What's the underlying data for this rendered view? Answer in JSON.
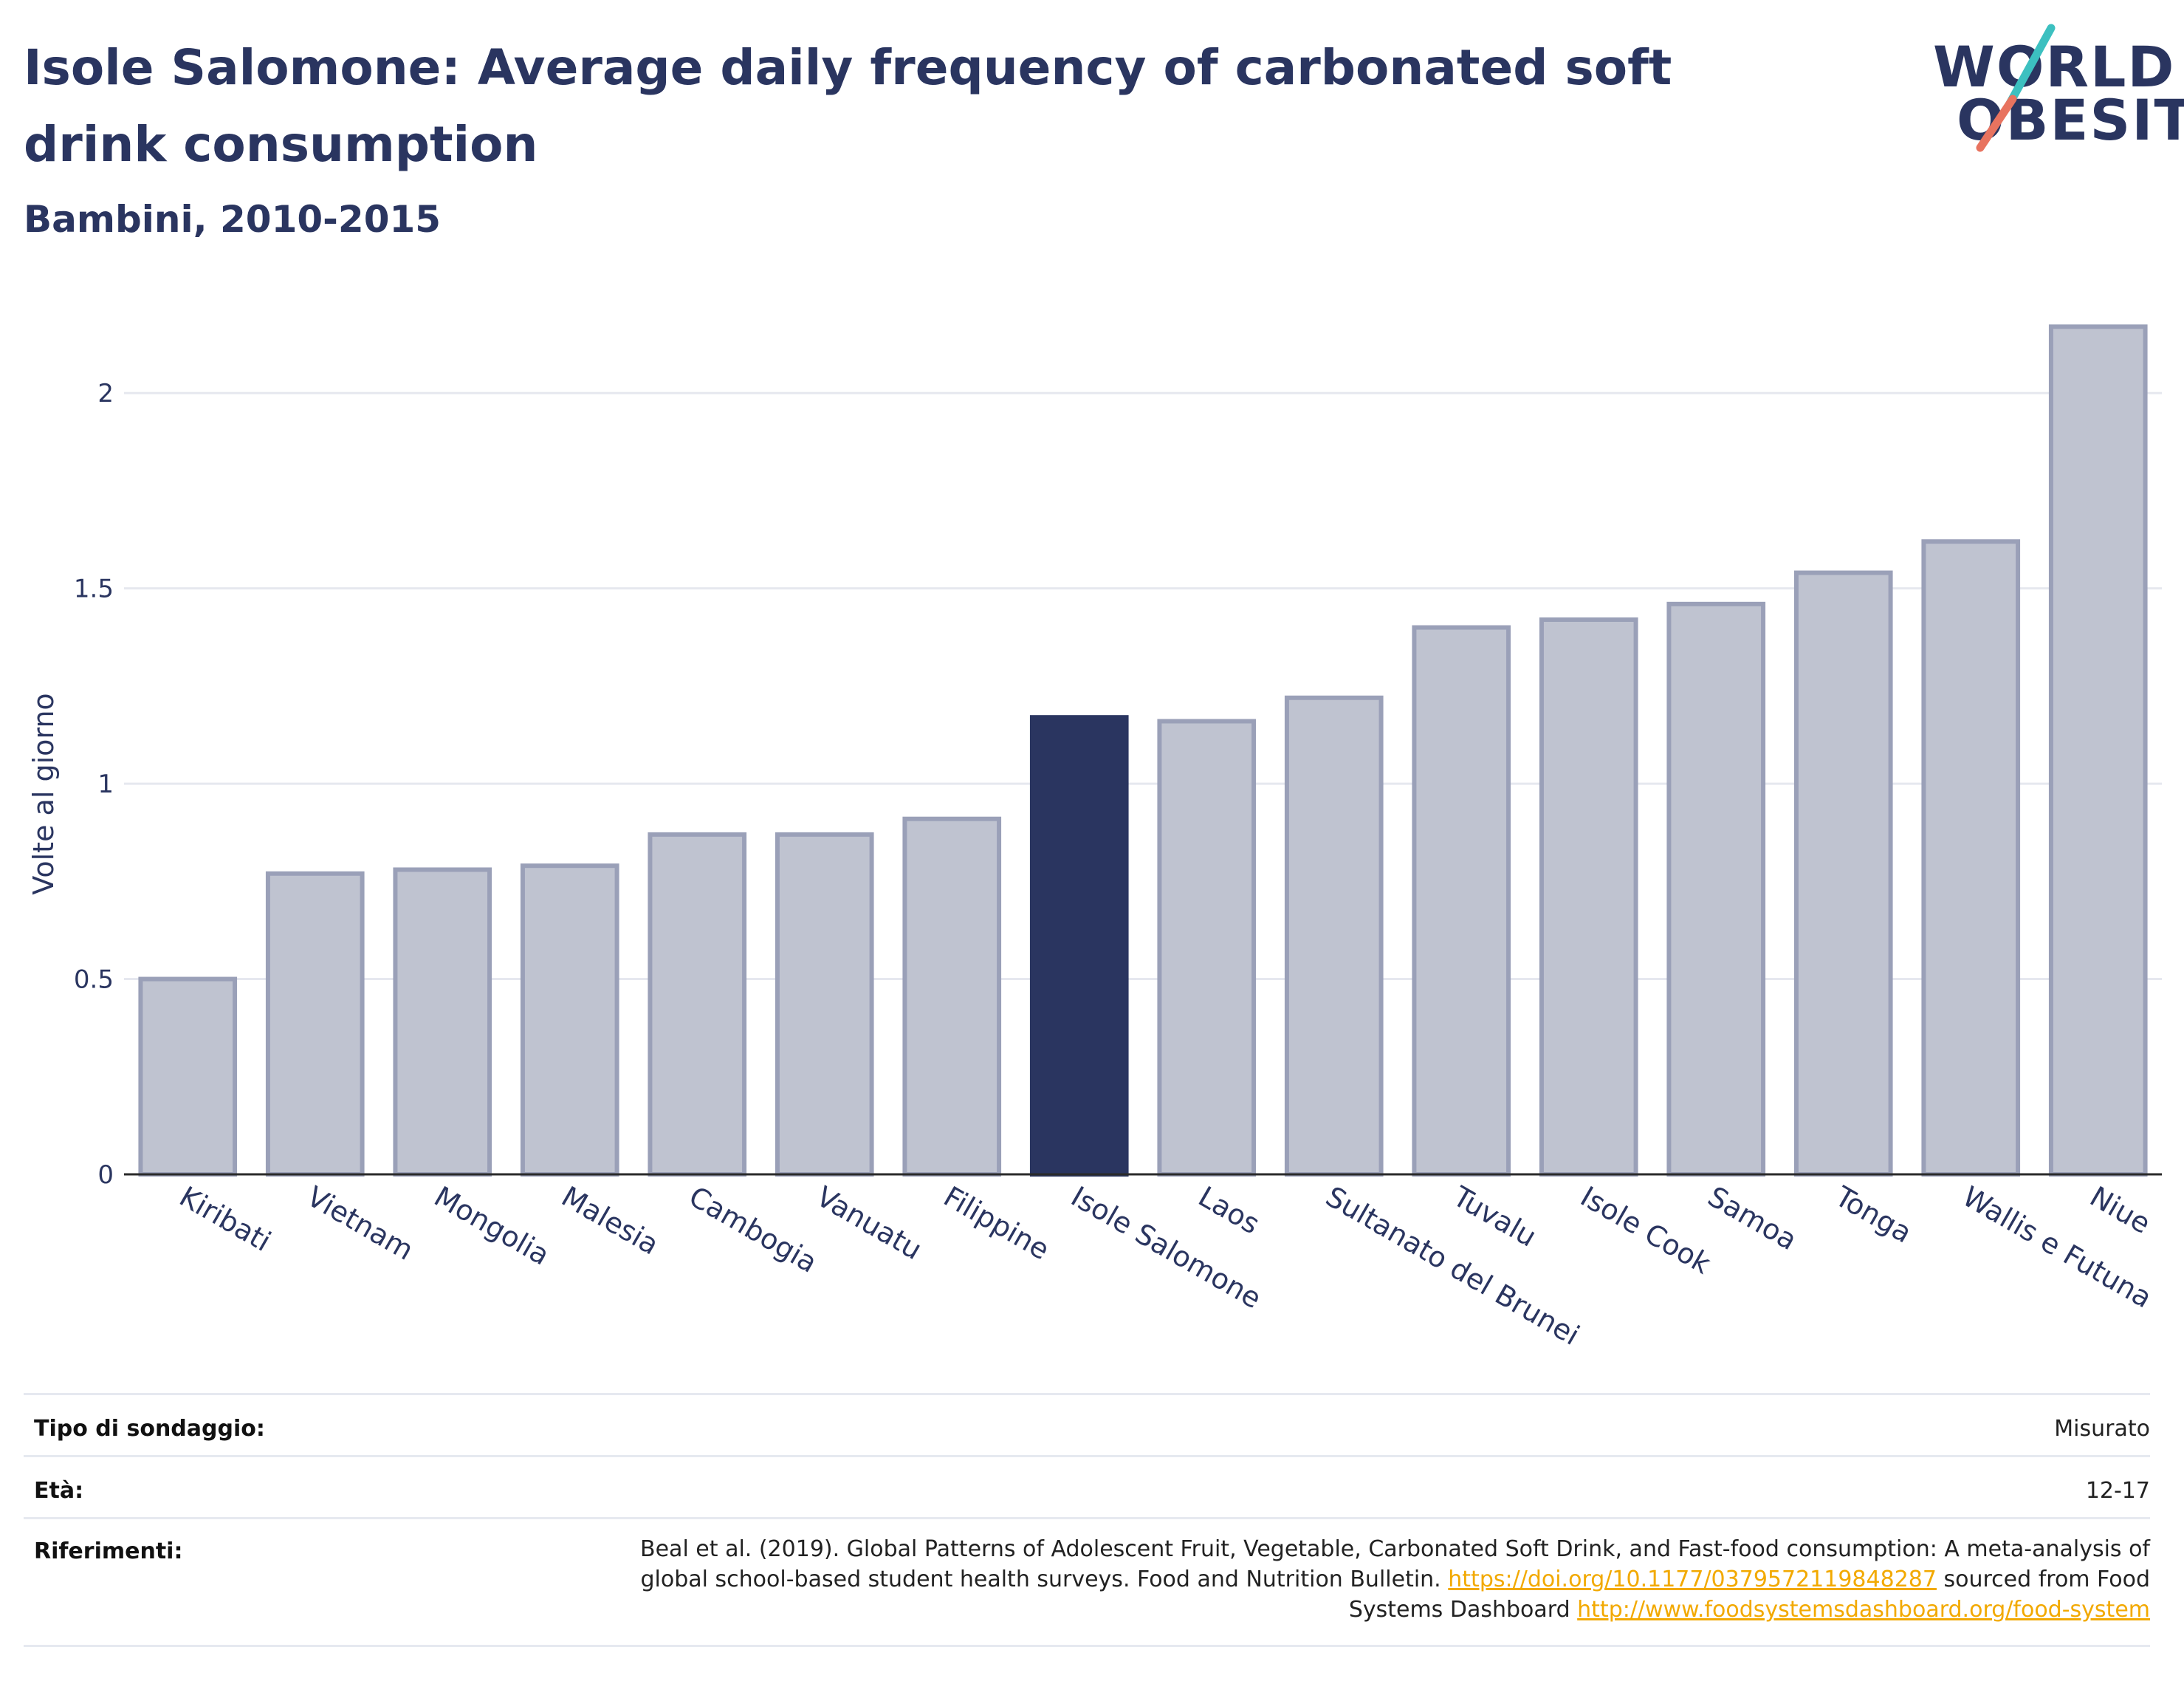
{
  "title": "Isole Salomone: Average daily frequency of carbonated soft drink consumption",
  "subtitle": "Bambini, 2010-2015",
  "logo": {
    "line1": "WORLD",
    "line2": "OBESITY"
  },
  "colors": {
    "highlight": "#2a3560",
    "bar_fill": "#bfc3d0",
    "bar_stroke": "#9aa0b8",
    "accent_teal": "#3cc0c0",
    "accent_coral": "#e8735f",
    "link": "#f2a900"
  },
  "chart_data": {
    "type": "bar",
    "ylabel": "Volte al giorno",
    "ylim": [
      0,
      2.25
    ],
    "yticks": [
      0,
      0.5,
      1,
      1.5,
      2
    ],
    "ytick_labels": [
      "0",
      "0.5",
      "1",
      "1.5",
      "2"
    ],
    "grid": true,
    "highlight": "Isole Salomone",
    "categories": [
      "Kiribati",
      "Vietnam",
      "Mongolia",
      "Malesia",
      "Cambogia",
      "Vanuatu",
      "Filippine",
      "Isole Salomone",
      "Laos",
      "Sultanato del Brunei",
      "Tuvalu",
      "Isole Cook",
      "Samoa",
      "Tonga",
      "Wallis e Futuna",
      "Niue"
    ],
    "values": [
      0.5,
      0.77,
      0.78,
      0.79,
      0.87,
      0.87,
      0.91,
      1.17,
      1.16,
      1.22,
      1.4,
      1.42,
      1.46,
      1.54,
      1.62,
      2.17
    ]
  },
  "info": {
    "survey_label": "Tipo di sondaggio:",
    "survey_value": "Misurato",
    "age_label": "Età:",
    "age_value": "12-17",
    "refs_label": "Riferimenti:",
    "refs_text1": "Beal et al. (2019). Global Patterns of Adolescent Fruit, Vegetable, Carbonated Soft Drink, and Fast-food consumption: A meta-analysis of global school-based student health surveys. Food and Nutrition Bulletin.",
    "refs_link1": "https://doi.org/10.1177/0379572119848287",
    "refs_text2": "sourced from Food Systems Dashboard",
    "refs_link2": "http://www.foodsystemsdashboard.org/food-system"
  }
}
